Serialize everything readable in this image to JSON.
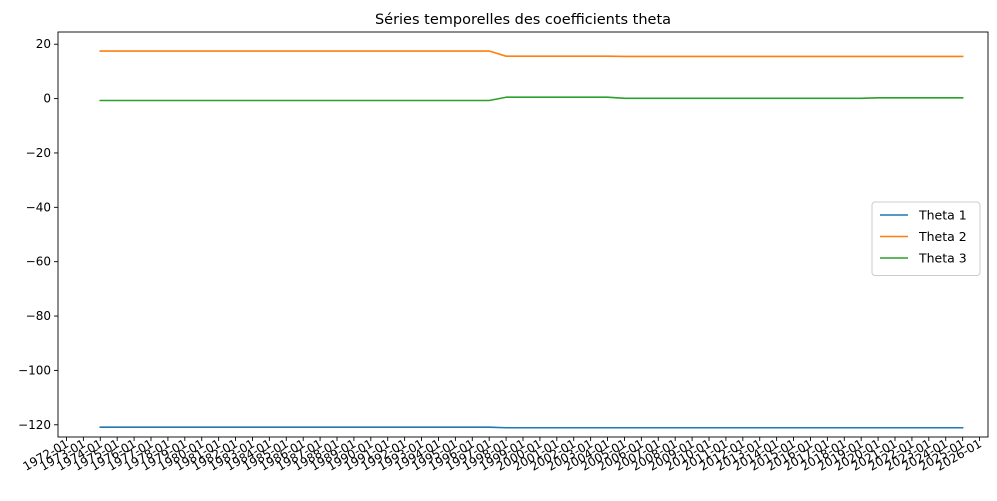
{
  "chart_data": {
    "type": "line",
    "title": "Séries temporelles des coefficients theta",
    "xlabel": "",
    "ylabel": "",
    "x_tick_labels": [
      "1972-01",
      "1973-01",
      "1974-01",
      "1975-01",
      "1976-01",
      "1977-01",
      "1978-01",
      "1979-01",
      "1980-01",
      "1981-01",
      "1982-01",
      "1983-01",
      "1984-01",
      "1985-01",
      "1986-01",
      "1987-01",
      "1988-01",
      "1989-01",
      "1990-01",
      "1991-01",
      "1992-01",
      "1993-01",
      "1994-01",
      "1995-01",
      "1996-01",
      "1997-01",
      "1998-01",
      "1999-01",
      "2000-01",
      "2001-01",
      "2002-01",
      "2003-01",
      "2004-01",
      "2005-01",
      "2006-01",
      "2007-01",
      "2008-01",
      "2009-01",
      "2010-01",
      "2011-01",
      "2012-01",
      "2013-01",
      "2014-01",
      "2015-01",
      "2016-01",
      "2017-01",
      "2018-01",
      "2019-01",
      "2020-01",
      "2021-01",
      "2022-01",
      "2023-01",
      "2024-01",
      "2025-01",
      "2026-01"
    ],
    "y_ticks": [
      20,
      0,
      -20,
      -40,
      -60,
      -80,
      -100,
      -120
    ],
    "ylim": [
      -124.5,
      24.5
    ],
    "xlim": [
      "1971-07",
      "2026-07"
    ],
    "grid": false,
    "legend_position": "center-right",
    "series": [
      {
        "name": "Theta 1",
        "color": "#1f77b4",
        "points": [
          [
            "1974-01",
            -120.9
          ],
          [
            "1997-01",
            -120.9
          ],
          [
            "1998-01",
            -121.1
          ],
          [
            "2025-01",
            -121.1
          ]
        ]
      },
      {
        "name": "Theta 2",
        "color": "#ff7f0e",
        "points": [
          [
            "1974-01",
            17.5
          ],
          [
            "1997-01",
            17.5
          ],
          [
            "1998-01",
            15.6
          ],
          [
            "2004-01",
            15.6
          ],
          [
            "2005-01",
            15.5
          ],
          [
            "2025-01",
            15.5
          ]
        ]
      },
      {
        "name": "Theta 3",
        "color": "#2ca02c",
        "points": [
          [
            "1974-01",
            -0.7
          ],
          [
            "1997-01",
            -0.7
          ],
          [
            "1998-01",
            0.5
          ],
          [
            "2004-01",
            0.5
          ],
          [
            "2005-01",
            0.1
          ],
          [
            "2019-01",
            0.1
          ],
          [
            "2020-01",
            0.3
          ],
          [
            "2025-01",
            0.3
          ]
        ]
      }
    ]
  }
}
